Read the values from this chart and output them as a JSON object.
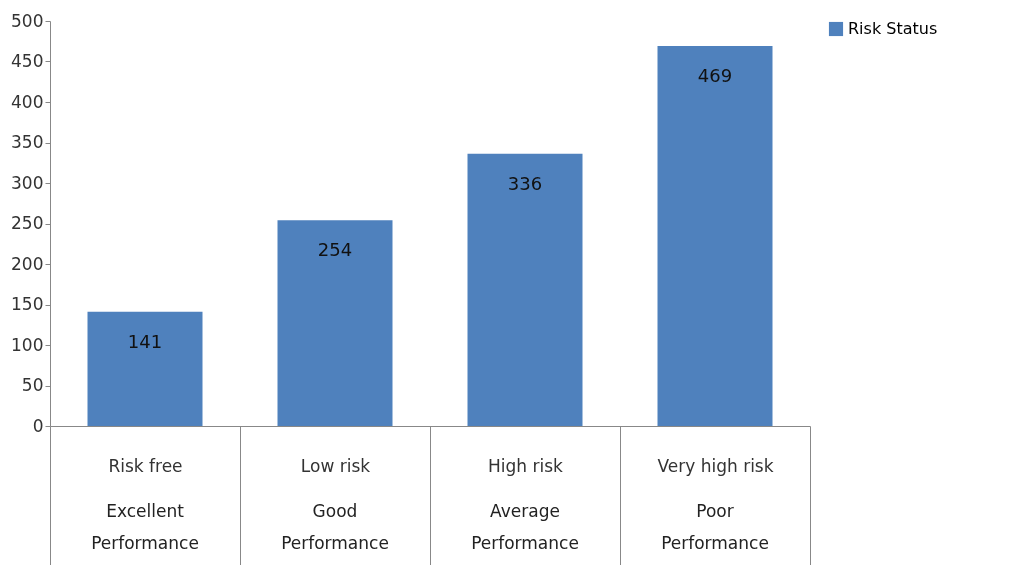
{
  "chart_data": {
    "type": "bar",
    "categories": [
      "Risk free",
      "Low risk",
      "High risk",
      "Very high risk"
    ],
    "series": [
      {
        "name": "Risk Status",
        "color": "#4f81bd",
        "values": [
          141,
          254,
          336,
          469
        ]
      }
    ],
    "ylim": [
      0,
      500
    ],
    "yticks": [
      0,
      50,
      100,
      150,
      200,
      250,
      300,
      350,
      400,
      450,
      500
    ],
    "data_labels": true,
    "grid": false,
    "legend": "right",
    "annotations": [
      "Excellent Performance",
      "Good Performance",
      "Average Performance",
      "Poor Performance"
    ]
  }
}
